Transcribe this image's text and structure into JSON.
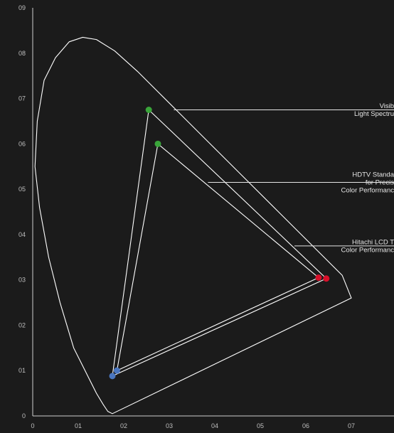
{
  "chart_data": {
    "type": "scatter",
    "xlim": [
      0,
      0.8
    ],
    "ylim": [
      0,
      0.9
    ],
    "grid": false,
    "x_ticks": [
      "0",
      "01",
      "02",
      "03",
      "04",
      "05",
      "06",
      "07"
    ],
    "y_ticks": [
      "0",
      "01",
      "02",
      "03",
      "04",
      "05",
      "06",
      "07",
      "08",
      "09"
    ],
    "spectral_locus": [
      [
        0.175,
        0.005
      ],
      [
        0.165,
        0.01
      ],
      [
        0.155,
        0.025
      ],
      [
        0.14,
        0.05
      ],
      [
        0.12,
        0.09
      ],
      [
        0.09,
        0.15
      ],
      [
        0.06,
        0.25
      ],
      [
        0.035,
        0.35
      ],
      [
        0.015,
        0.46
      ],
      [
        0.005,
        0.55
      ],
      [
        0.01,
        0.65
      ],
      [
        0.025,
        0.74
      ],
      [
        0.05,
        0.79
      ],
      [
        0.08,
        0.825
      ],
      [
        0.11,
        0.835
      ],
      [
        0.14,
        0.83
      ],
      [
        0.18,
        0.805
      ],
      [
        0.23,
        0.76
      ],
      [
        0.3,
        0.69
      ],
      [
        0.38,
        0.61
      ],
      [
        0.46,
        0.53
      ],
      [
        0.54,
        0.45
      ],
      [
        0.61,
        0.38
      ],
      [
        0.68,
        0.31
      ],
      [
        0.7,
        0.26
      ]
    ],
    "series": [
      {
        "color": "#ffffff",
        "values": [
          [
            0.255,
            0.675
          ],
          [
            0.645,
            0.303
          ],
          [
            0.175,
            0.088
          ]
        ]
      },
      {
        "color": "#ffffff",
        "values": [
          [
            0.275,
            0.6
          ],
          [
            0.628,
            0.305
          ],
          [
            0.185,
            0.1
          ]
        ]
      }
    ],
    "markers": [
      {
        "x": 0.255,
        "y": 0.675,
        "color": "#3aa53a"
      },
      {
        "x": 0.275,
        "y": 0.6,
        "color": "#3aa53a"
      },
      {
        "x": 0.645,
        "y": 0.303,
        "color": "#d8102a"
      },
      {
        "x": 0.628,
        "y": 0.305,
        "color": "#d8102a"
      },
      {
        "x": 0.175,
        "y": 0.088,
        "color": "#4a76c0"
      },
      {
        "x": 0.185,
        "y": 0.1,
        "color": "#4a76c0"
      }
    ],
    "annotations": [
      {
        "lines": [
          "Visib",
          "Light Spectru"
        ],
        "x": 0.31,
        "y": 0.675
      },
      {
        "lines": [
          "HDTV Standa",
          "for Precis",
          "Color Performanc"
        ],
        "x": 0.385,
        "y": 0.515
      },
      {
        "lines": [
          "Hitachi LCD T",
          "Color Performanc"
        ],
        "x": 0.575,
        "y": 0.375
      }
    ]
  }
}
